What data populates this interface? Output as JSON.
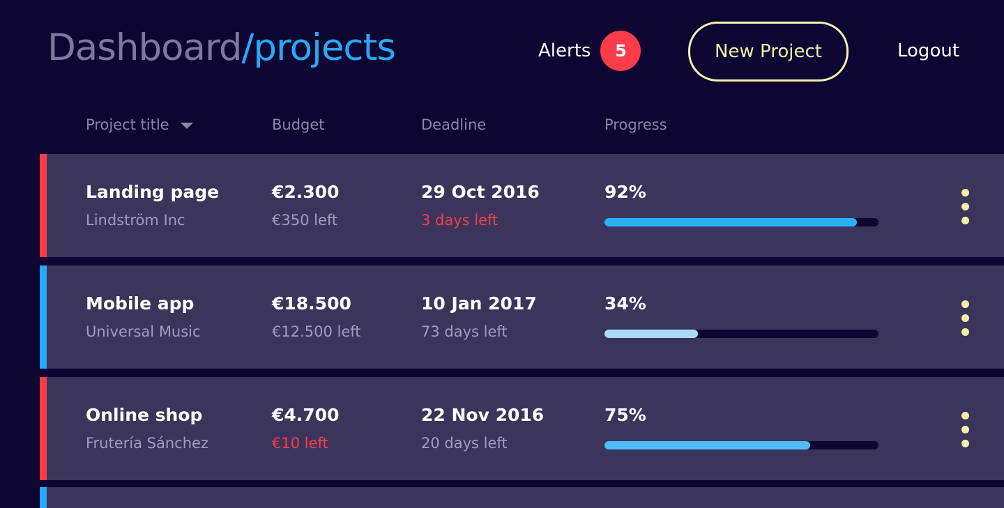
{
  "header": {
    "title_prefix": "Dashboard",
    "title_suffix": "/projects",
    "alerts_label": "Alerts",
    "alerts_count": "5",
    "new_project_label": "New Project",
    "logout_label": "Logout"
  },
  "columns": {
    "title": "Project title",
    "budget": "Budget",
    "deadline": "Deadline",
    "progress": "Progress"
  },
  "colors": {
    "background": "#0d0633",
    "row_bg": "#3b355c",
    "accent_red": "#fb3c49",
    "accent_blue": "#29a9f5",
    "button_yellow": "#f4f1a8"
  },
  "projects": [
    {
      "title": "Landing page",
      "client": "Lindström Inc",
      "budget": "€2.300",
      "budget_left": "€350 left",
      "budget_warn": false,
      "deadline": "29 Oct 2016",
      "days_left": "3 days left",
      "deadline_warn": true,
      "progress_label": "92%",
      "progress": 0.92,
      "status_color": "#fb3c49",
      "bar_color": "#29b2fb"
    },
    {
      "title": "Mobile app",
      "client": "Universal Music",
      "budget": "€18.500",
      "budget_left": "€12.500 left",
      "budget_warn": false,
      "deadline": "10 Jan 2017",
      "days_left": "73 days left",
      "deadline_warn": false,
      "progress_label": "34%",
      "progress": 0.34,
      "status_color": "#29a9f5",
      "bar_color": "#a9dcfb"
    },
    {
      "title": "Online shop",
      "client": "Frutería Sánchez",
      "budget": "€4.700",
      "budget_left": "€10 left",
      "budget_warn": true,
      "deadline": "22 Nov 2016",
      "days_left": "20 days left",
      "deadline_warn": false,
      "progress_label": "75%",
      "progress": 0.75,
      "status_color": "#fb3c49",
      "bar_color": "#4fbdfb"
    }
  ],
  "next_row": {
    "status_color": "#29a9f5"
  }
}
